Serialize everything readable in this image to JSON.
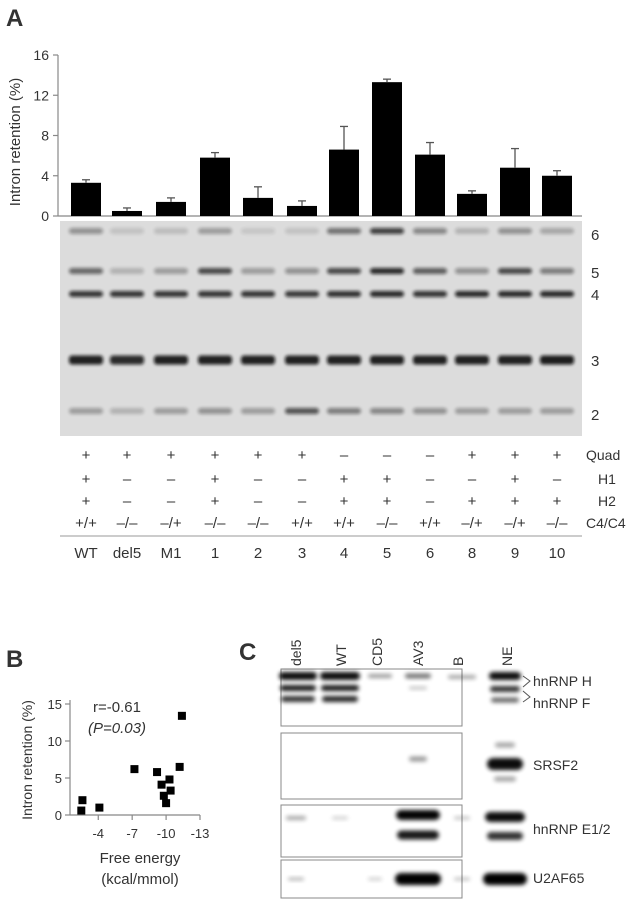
{
  "panels": {
    "a": "A",
    "b": "B",
    "c": "C"
  },
  "chart_data": [
    {
      "type": "bar",
      "ylabel": "Intron retention (%)",
      "ylim": [
        0,
        16
      ],
      "yticks": [
        "0",
        "4",
        "8",
        "12",
        "16"
      ],
      "categories": [
        "WT",
        "del5",
        "M1",
        "1",
        "2",
        "3",
        "4",
        "5",
        "6",
        "8",
        "9",
        "10"
      ],
      "values": [
        3.3,
        0.5,
        1.4,
        5.8,
        1.8,
        1.0,
        6.6,
        13.3,
        6.1,
        2.2,
        4.8,
        4.0
      ],
      "errors": [
        0.3,
        0.3,
        0.4,
        0.5,
        1.1,
        0.5,
        2.3,
        0.3,
        1.2,
        0.3,
        1.9,
        0.5
      ]
    },
    {
      "type": "scatter",
      "r_label": "r=-0.61",
      "p_label": "(P=0.03)",
      "xlabel_line1": "Free energy",
      "xlabel_line2": "(kcal/mmol)",
      "ylabel": "Intron retention (%)",
      "xticks": [
        "-4",
        "-7",
        "-10",
        "-13"
      ],
      "yticks": [
        "0",
        "5",
        "10",
        "15"
      ],
      "xlim": [
        -1.5,
        -13
      ],
      "ylim": [
        0,
        15
      ],
      "points": [
        {
          "x": -2.5,
          "y": 0.6
        },
        {
          "x": -2.6,
          "y": 2.0
        },
        {
          "x": -4.1,
          "y": 1.0
        },
        {
          "x": -7.2,
          "y": 6.2
        },
        {
          "x": -9.2,
          "y": 5.8
        },
        {
          "x": -9.6,
          "y": 4.1
        },
        {
          "x": -9.8,
          "y": 2.6
        },
        {
          "x": -10.0,
          "y": 1.6
        },
        {
          "x": -10.3,
          "y": 4.8
        },
        {
          "x": -10.4,
          "y": 3.3
        },
        {
          "x": -11.2,
          "y": 6.5
        },
        {
          "x": -11.4,
          "y": 13.4
        }
      ]
    }
  ],
  "gel": {
    "band_labels": [
      "6",
      "5",
      "4",
      "3",
      "2"
    ],
    "conditions": {
      "labels": [
        "Quad",
        "H1",
        "H2",
        "C4/C4"
      ],
      "quad": [
        "+",
        "+",
        "+",
        "+",
        "+",
        "+",
        "–",
        "–",
        "–",
        "+",
        "+",
        "+"
      ],
      "h1": [
        "+",
        "–",
        "–",
        "+",
        "–",
        "–",
        "+",
        "+",
        "–",
        "–",
        "+",
        "–"
      ],
      "h2": [
        "+",
        "–",
        "–",
        "+",
        "–",
        "–",
        "+",
        "+",
        "–",
        "+",
        "+",
        "+"
      ],
      "c4": [
        "+/+",
        "–/–",
        "–/+",
        "–/–",
        "–/–",
        "+/+",
        "+/+",
        "–/–",
        "+/+",
        "–/+",
        "–/+",
        "–/–"
      ]
    }
  },
  "blot": {
    "lanes": [
      "del5",
      "WT",
      "CD5",
      "AV3",
      "B",
      "NE"
    ],
    "labels": [
      "hnRNP H",
      "hnRNP F",
      "SRSF2",
      "hnRNP E1/2",
      "U2AF65"
    ]
  }
}
